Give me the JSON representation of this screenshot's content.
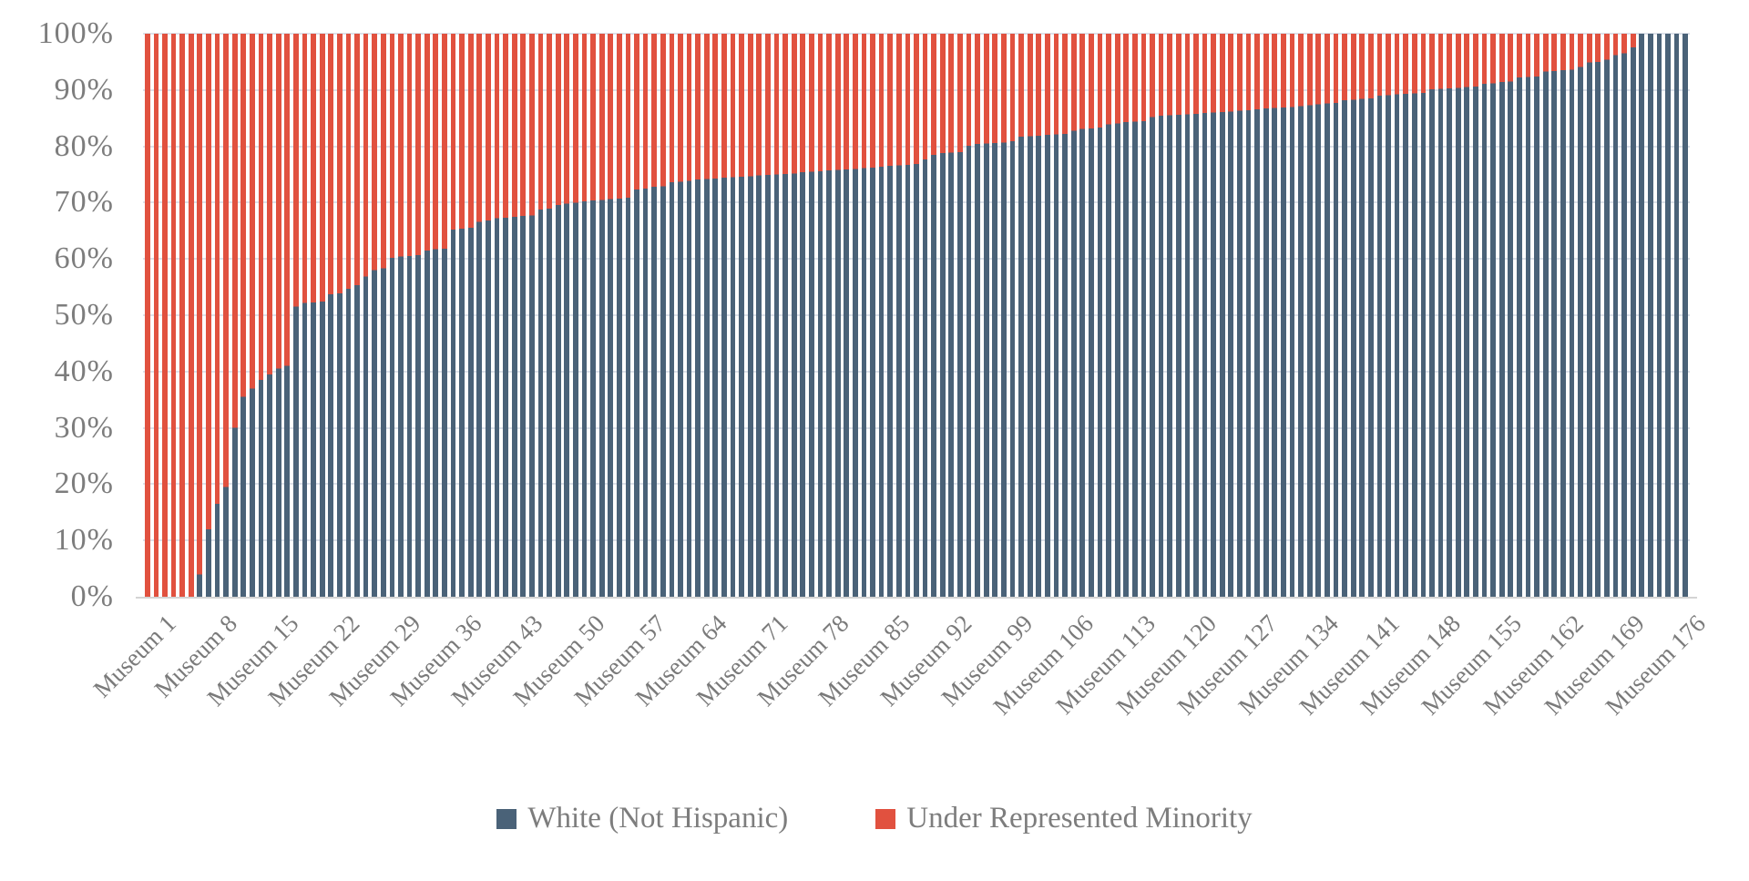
{
  "chart_data": {
    "type": "bar",
    "variant": "100-percent-stacked-column",
    "title": "",
    "xlabel": "",
    "ylabel": "",
    "ylim": [
      0,
      100
    ],
    "grid": true,
    "legend_position": "bottom",
    "museum_count": 177,
    "category_prefix": "Museum",
    "x_tick_interval": 7,
    "x_tick_labels": [
      "Museum 1",
      "Museum 8",
      "Museum 15",
      "Museum 22",
      "Museum 29",
      "Museum 36",
      "Museum 43",
      "Museum 50",
      "Museum 57",
      "Museum 64",
      "Museum 71",
      "Museum 78",
      "Museum 85",
      "Museum 92",
      "Museum 99",
      "Museum 106",
      "Museum 113",
      "Museum 120",
      "Museum 127",
      "Museum 134",
      "Museum 141",
      "Museum 148",
      "Museum 155",
      "Museum 162",
      "Museum 169",
      "Museum 176"
    ],
    "y_ticks": [
      {
        "label": "100%",
        "value": 100
      },
      {
        "label": "90%",
        "value": 90
      },
      {
        "label": "80%",
        "value": 80
      },
      {
        "label": "70%",
        "value": 70
      },
      {
        "label": "60%",
        "value": 60
      },
      {
        "label": "50%",
        "value": 50
      },
      {
        "label": "40%",
        "value": 40
      },
      {
        "label": "30%",
        "value": 30
      },
      {
        "label": "20%",
        "value": 20
      },
      {
        "label": "10%",
        "value": 10
      },
      {
        "label": "0%",
        "value": 0
      }
    ],
    "series": [
      {
        "name": "White (Not Hispanic)",
        "color": "#4a6278",
        "values": [
          0,
          0,
          0,
          0,
          0,
          0,
          4,
          12,
          16.5,
          19.5,
          30,
          35.5,
          37,
          38.5,
          39.5,
          40.5,
          41,
          51.5,
          52.2,
          52.3,
          52.4,
          53.7,
          53.9,
          54.7,
          55.3,
          56.9,
          58,
          58.3,
          60.2,
          60.4,
          60.5,
          60.7,
          61.5,
          61.7,
          61.8,
          65.2,
          65.4,
          65.5,
          66.6,
          66.8,
          67.2,
          67.3,
          67.5,
          67.6,
          67.7,
          68.8,
          68.9,
          69.6,
          69.8,
          70,
          70.2,
          70.4,
          70.5,
          70.6,
          70.7,
          70.9,
          72.3,
          72.5,
          72.8,
          72.9,
          73.6,
          73.7,
          73.9,
          74.1,
          74.2,
          74.3,
          74.4,
          74.5,
          74.6,
          74.7,
          74.8,
          74.9,
          75,
          75.1,
          75.2,
          75.4,
          75.5,
          75.6,
          75.7,
          75.8,
          75.9,
          76,
          76.1,
          76.2,
          76.4,
          76.5,
          76.6,
          76.7,
          76.9,
          77.7,
          78.5,
          78.8,
          78.9,
          79,
          80.1,
          80.4,
          80.5,
          80.6,
          80.7,
          80.9,
          81.7,
          81.8,
          81.9,
          82,
          82.1,
          82.2,
          82.8,
          83.1,
          83.2,
          83.3,
          83.9,
          84.1,
          84.3,
          84.4,
          84.5,
          85.2,
          85.4,
          85.5,
          85.6,
          85.7,
          85.8,
          85.9,
          86,
          86.1,
          86.2,
          86.3,
          86.4,
          86.6,
          86.7,
          86.8,
          86.9,
          87,
          87.1,
          87.3,
          87.5,
          87.6,
          87.7,
          88.2,
          88.3,
          88.4,
          88.5,
          89,
          89.1,
          89.2,
          89.3,
          89.4,
          89.5,
          90.1,
          90.2,
          90.3,
          90.4,
          90.5,
          90.6,
          91.1,
          91.2,
          91.4,
          91.5,
          92.2,
          92.3,
          92.4,
          93.3,
          93.4,
          93.5,
          93.6,
          94.1,
          94.9,
          95,
          95.4,
          96.2,
          96.5,
          97.6,
          100,
          100,
          100,
          100,
          100,
          100
        ]
      },
      {
        "name": "Under Represented Minority",
        "color": "#e1513f",
        "complement_of": "White (Not Hispanic)",
        "note": "each value = 100 minus the White (Not Hispanic) value"
      }
    ]
  },
  "legend": {
    "items": [
      {
        "label": "White (Not Hispanic)",
        "color": "#4a6278"
      },
      {
        "label": "Under Represented Minority",
        "color": "#e1513f"
      }
    ]
  },
  "colors": {
    "white_series": "#4a6278",
    "urm_series": "#e1513f",
    "axis_text": "#7d7d7d",
    "gridline": "#dde2ea",
    "axis_line": "#d4d4d4",
    "background": "#ffffff"
  }
}
